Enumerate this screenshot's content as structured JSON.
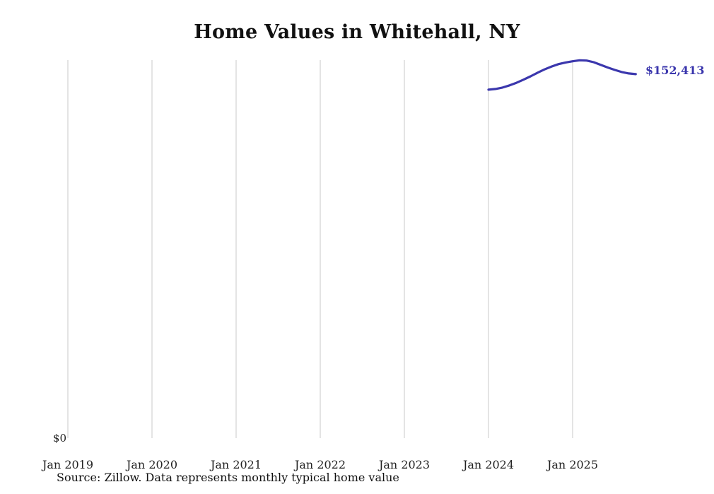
{
  "title": "Home Values in Whitehall, NY",
  "source_note": "Source: Zillow. Data represents monthly typical home value",
  "colors": {
    "line": "#3b37ad",
    "grid": "#cacaca",
    "text": "#222222"
  },
  "chart_data": {
    "type": "line",
    "title": "Home Values in Whitehall, NY",
    "xlabel": "",
    "ylabel": "",
    "x_ticks": [
      "Jan 2019",
      "Jan 2020",
      "Jan 2021",
      "Jan 2022",
      "Jan 2023",
      "Jan 2024",
      "Jan 2025"
    ],
    "y_origin_label": "$0",
    "end_value_label": "$152,413",
    "ylim": [
      0,
      158300
    ],
    "grid": "vertical-only",
    "legend": "none",
    "series": [
      {
        "name": "Monthly typical home value",
        "points": [
          {
            "date": "Jan 2024",
            "value": 145900
          },
          {
            "date": "Feb 2024",
            "value": 146200
          },
          {
            "date": "Mar 2024",
            "value": 146800
          },
          {
            "date": "Apr 2024",
            "value": 147700
          },
          {
            "date": "May 2024",
            "value": 148800
          },
          {
            "date": "Jun 2024",
            "value": 150100
          },
          {
            "date": "Jul 2024",
            "value": 151500
          },
          {
            "date": "Aug 2024",
            "value": 153000
          },
          {
            "date": "Sep 2024",
            "value": 154400
          },
          {
            "date": "Oct 2024",
            "value": 155600
          },
          {
            "date": "Nov 2024",
            "value": 156600
          },
          {
            "date": "Dec 2024",
            "value": 157300
          },
          {
            "date": "Jan 2025",
            "value": 157800
          },
          {
            "date": "Feb 2025",
            "value": 158200
          },
          {
            "date": "Mar 2025",
            "value": 158100
          },
          {
            "date": "Apr 2025",
            "value": 157400
          },
          {
            "date": "May 2025",
            "value": 156300
          },
          {
            "date": "Jun 2025",
            "value": 155200
          },
          {
            "date": "Jul 2025",
            "value": 154200
          },
          {
            "date": "Aug 2025",
            "value": 153300
          },
          {
            "date": "Sep 2025",
            "value": 152700
          },
          {
            "date": "Oct 2025",
            "value": 152413
          }
        ]
      }
    ]
  }
}
